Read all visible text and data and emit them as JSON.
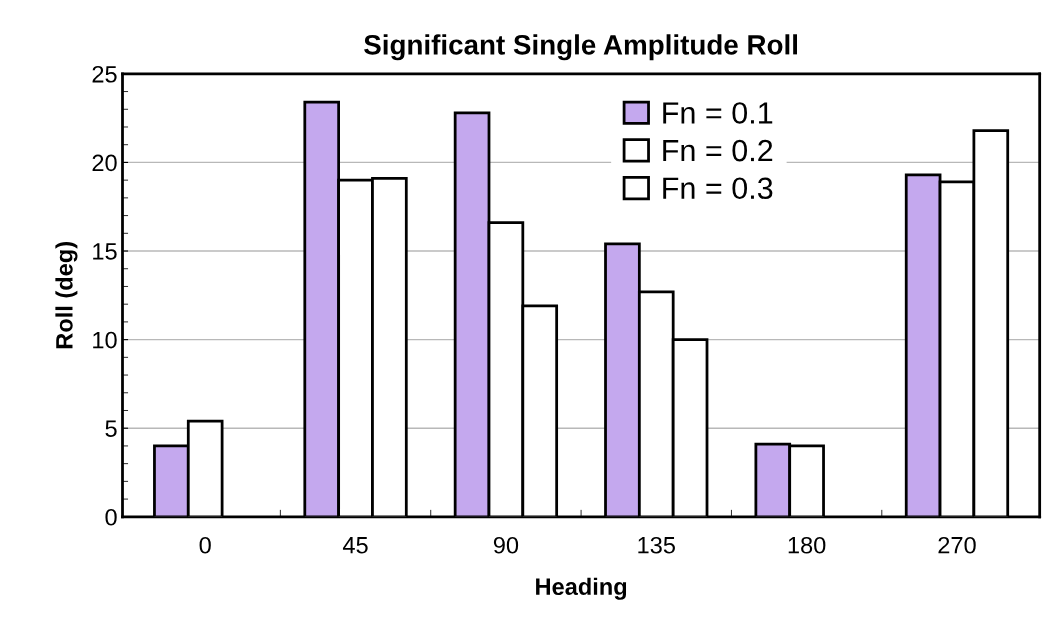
{
  "chart_data": {
    "type": "bar",
    "title": "Significant Single Amplitude Roll",
    "xlabel": "Heading",
    "ylabel": "Roll (deg)",
    "categories": [
      "0",
      "45",
      "90",
      "135",
      "180",
      "270"
    ],
    "series": [
      {
        "name": "Fn = 0.1",
        "color": "#c4a8ee",
        "values": [
          4.0,
          23.4,
          22.8,
          15.4,
          4.1,
          19.3
        ]
      },
      {
        "name": "Fn = 0.2",
        "color": "#ffffff",
        "values": [
          5.4,
          19.0,
          16.6,
          12.7,
          4.0,
          18.9
        ]
      },
      {
        "name": "Fn = 0.3",
        "color": "#ffffff",
        "values": [
          null,
          19.1,
          11.9,
          10.0,
          null,
          21.8
        ]
      }
    ],
    "ylim": [
      0,
      25
    ],
    "yticks": [
      0,
      5,
      10,
      15,
      20,
      25
    ],
    "grid": "y",
    "legend": "top right"
  }
}
